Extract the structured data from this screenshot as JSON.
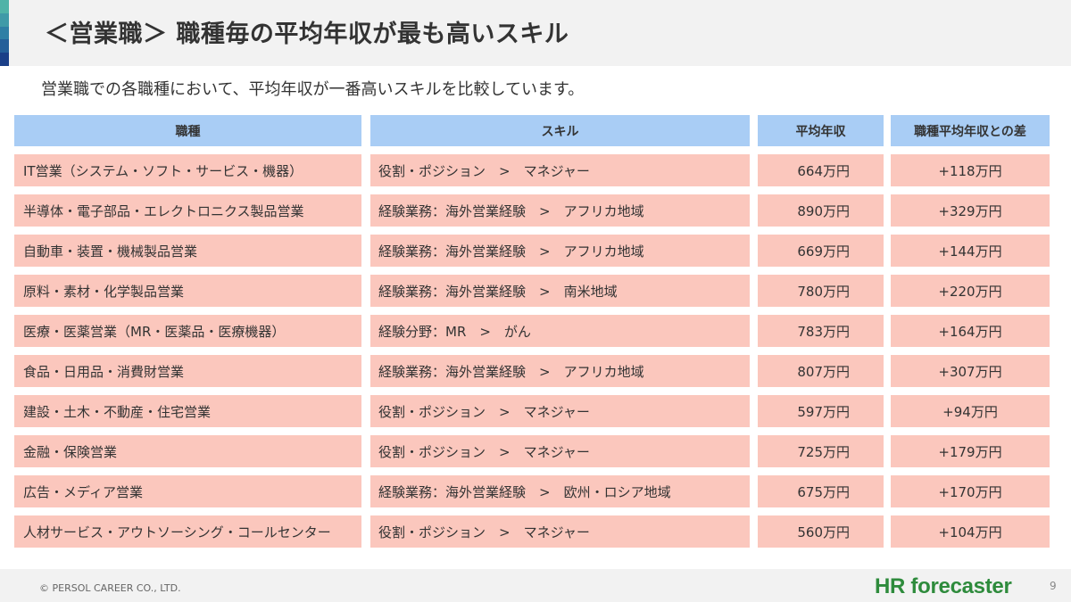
{
  "header": {
    "title": "＜営業職＞ 職種毎の平均年収が最も高いスキル",
    "subtitle": "営業職での各職種において、平均年収が一番高いスキルを比較しています。",
    "accent_colors": [
      "#4fb3a8",
      "#3f9aa8",
      "#2f7fa5",
      "#245f99",
      "#1a3f88"
    ]
  },
  "table": {
    "columns": [
      "職種",
      "スキル",
      "平均年収",
      "職種平均年収との差"
    ],
    "rows": [
      {
        "job": "IT営業（システム・ソフト・サービス・機器）",
        "skill": "役割・ポジション　>　マネジャー",
        "salary": "664万円",
        "diff": "+118万円"
      },
      {
        "job": "半導体・電子部品・エレクトロニクス製品営業",
        "skill": "経験業務：海外営業経験　>　アフリカ地域",
        "salary": "890万円",
        "diff": "+329万円"
      },
      {
        "job": "自動車・装置・機械製品営業",
        "skill": "経験業務：海外営業経験　>　アフリカ地域",
        "salary": "669万円",
        "diff": "+144万円"
      },
      {
        "job": "原料・素材・化学製品営業",
        "skill": "経験業務：海外営業経験　>　南米地域",
        "salary": "780万円",
        "diff": "+220万円"
      },
      {
        "job": "医療・医薬営業（MR・医薬品・医療機器）",
        "skill": "経験分野：MR　>　がん",
        "salary": "783万円",
        "diff": "+164万円"
      },
      {
        "job": "食品・日用品・消費財営業",
        "skill": "経験業務：海外営業経験　>　アフリカ地域",
        "salary": "807万円",
        "diff": "+307万円"
      },
      {
        "job": "建設・土木・不動産・住宅営業",
        "skill": "役割・ポジション　>　マネジャー",
        "salary": "597万円",
        "diff": "+94万円"
      },
      {
        "job": "金融・保険営業",
        "skill": "役割・ポジション　>　マネジャー",
        "salary": "725万円",
        "diff": "+179万円"
      },
      {
        "job": "広告・メディア営業",
        "skill": "経験業務：海外営業経験　>　欧州・ロシア地域",
        "salary": "675万円",
        "diff": "+170万円"
      },
      {
        "job": "人材サービス・アウトソーシング・コールセンター",
        "skill": "役割・ポジション　>　マネジャー",
        "salary": "560万円",
        "diff": "+104万円"
      }
    ],
    "header_color": "#a9cdf5",
    "row_color": "#fbc7bd"
  },
  "footer": {
    "copyright": "© PERSOL CAREER CO., LTD.",
    "logo_text": "HR forecaster",
    "page_number": "9"
  }
}
